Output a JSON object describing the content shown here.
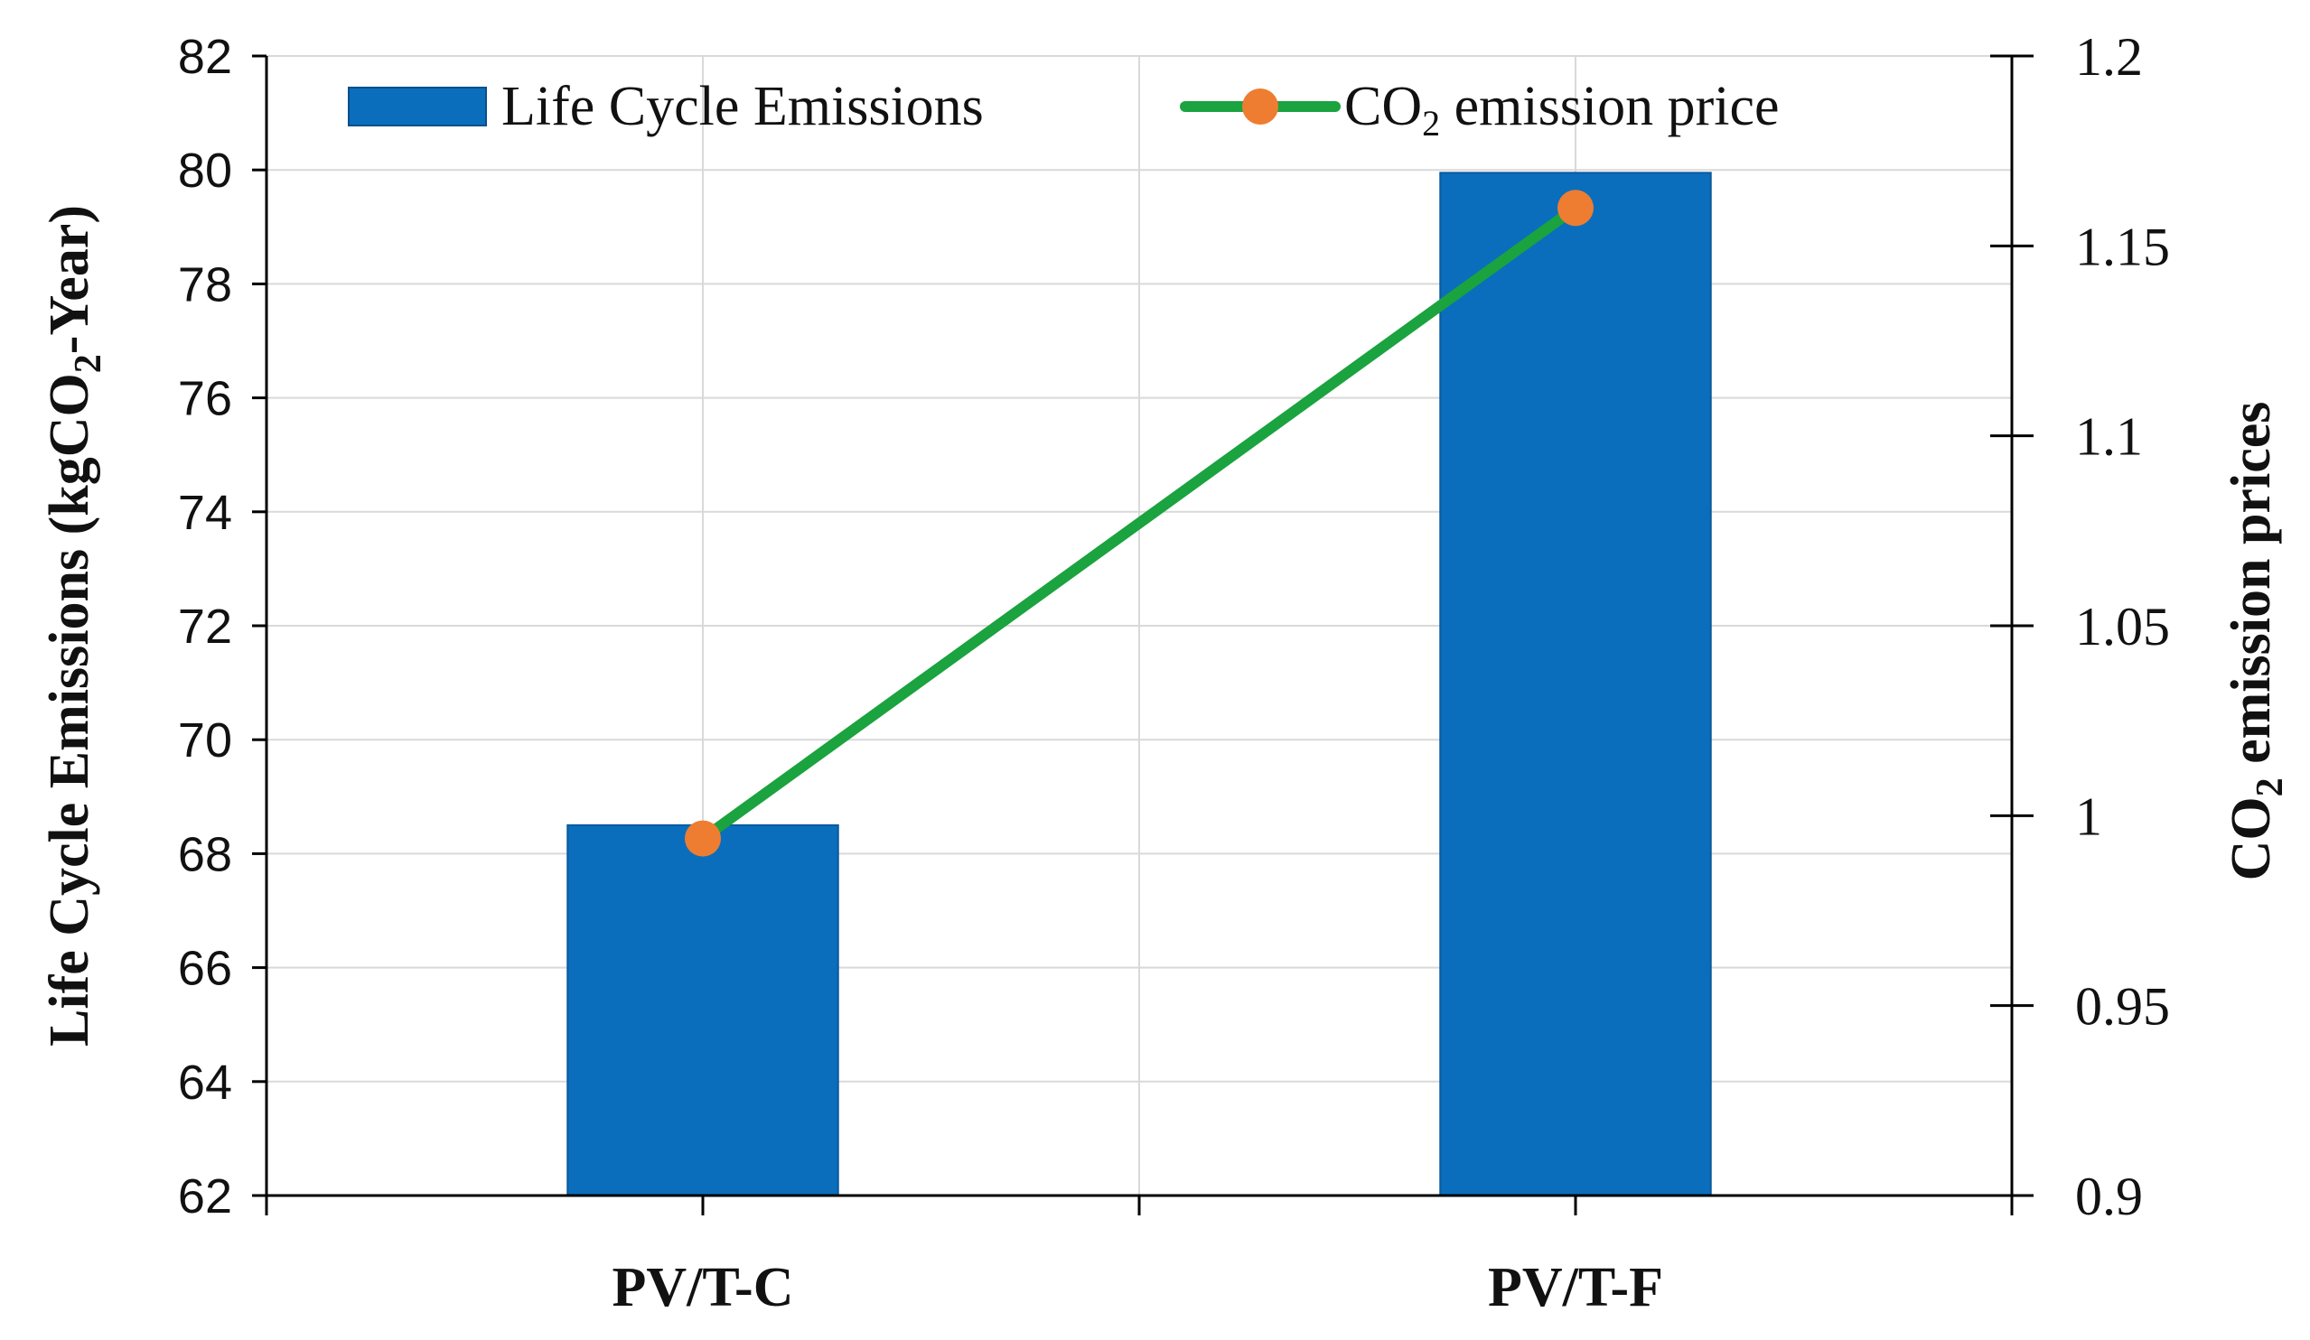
{
  "chart_data": {
    "type": "bar+line",
    "categories": [
      "PV/T-C",
      "PV/T-F"
    ],
    "series": [
      {
        "name": "Life Cycle Emissions",
        "kind": "bar",
        "axis": "left",
        "values": [
          68.5,
          79.95
        ],
        "color": "#0a6ebd"
      },
      {
        "name": "CO2 emission price",
        "kind": "line",
        "axis": "right",
        "values": [
          0.994,
          1.16
        ],
        "line_color": "#1aa33f",
        "marker_color": "#ee7d31"
      }
    ],
    "left_axis": {
      "label": "Life Cycle Emissions (kgCO2-Year)",
      "ylim": [
        62,
        82
      ],
      "ticks": [
        "62",
        "64",
        "66",
        "68",
        "70",
        "72",
        "74",
        "76",
        "78",
        "80",
        "82"
      ]
    },
    "right_axis": {
      "label": "CO2 emission prices",
      "ylim": [
        0.9,
        1.2
      ],
      "ticks": [
        "0.9",
        "0.95",
        "1",
        "1.05",
        "1.1",
        "1.15",
        "1.2"
      ]
    },
    "legend": {
      "position": "top",
      "bar_label": "Life Cycle Emissions",
      "line_label_prefix": "CO",
      "line_label_sub": "2",
      "line_label_suffix": " emission price"
    },
    "left_title_parts": {
      "prefix": "Life Cycle Emissions (kgCO",
      "sub": "2",
      "suffix": "-Year)"
    },
    "right_title_parts": {
      "prefix": "CO",
      "sub": "2",
      "suffix": " emission prices"
    },
    "grid": true
  }
}
